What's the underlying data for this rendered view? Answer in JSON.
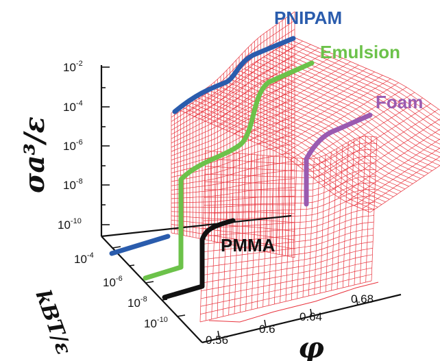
{
  "chart_data": {
    "type": "surface3d",
    "ylabel": "σa³/ε",
    "xlabel": "φ",
    "zlabel": "kBT/ε",
    "x_ticks": [
      "0.56",
      "0.6",
      "0.64",
      "0.68"
    ],
    "y_ticks": [
      {
        "base": "10",
        "exp": "-2"
      },
      {
        "base": "10",
        "exp": "-4"
      },
      {
        "base": "10",
        "exp": "-6"
      },
      {
        "base": "10",
        "exp": "-8"
      },
      {
        "base": "10",
        "exp": "-10"
      }
    ],
    "z_ticks": [
      {
        "base": "10",
        "exp": "-4"
      },
      {
        "base": "10",
        "exp": "-6"
      },
      {
        "base": "10",
        "exp": "-8"
      },
      {
        "base": "10",
        "exp": "-10"
      }
    ],
    "series": [
      {
        "name": "PNIPAM",
        "color": "#2a5cad"
      },
      {
        "name": "Emulsion",
        "color": "#6cc24a"
      },
      {
        "name": "Foam",
        "color": "#9a5ab0"
      },
      {
        "name": "PMMA",
        "color": "#111111"
      }
    ],
    "surface_color": "#e8323c"
  }
}
